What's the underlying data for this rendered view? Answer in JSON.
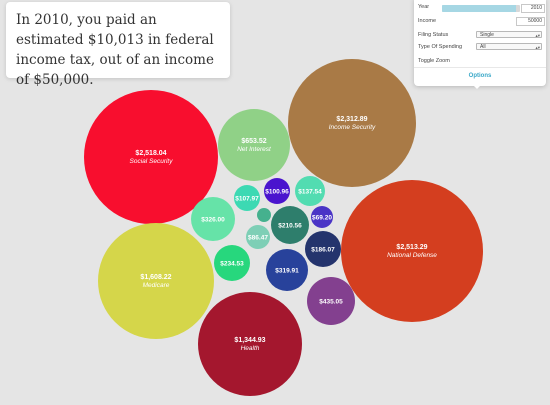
{
  "headline": "In 2010, you paid an estimated $10,013 in federal income tax, out of an income of $50,000.",
  "options": {
    "year_label": "Year",
    "year_value": "2010",
    "year_fraction": 0.95,
    "income_label": "Income",
    "income_value": "50000",
    "filing_label": "Filing Status",
    "filing_value": "Single",
    "spending_label": "Type Of Spending",
    "spending_value": "All",
    "toggle_zoom_label": "Toggle Zoom",
    "tab_label": "Options"
  },
  "colors": {
    "background": "#e5e5e5",
    "accent": "#3aa8c8"
  },
  "chart_data": {
    "type": "bubble",
    "bubbles": [
      {
        "amount": "$2,518.04",
        "name": "Social Security",
        "color": "#f80e2e"
      },
      {
        "amount": "$2,312.89",
        "name": "Income Security",
        "color": "#a97a46"
      },
      {
        "amount": "$2,513.29",
        "name": "National Defense",
        "color": "#d43e1f"
      },
      {
        "amount": "$1,608.22",
        "name": "Medicare",
        "color": "#d5d64a"
      },
      {
        "amount": "$1,344.93",
        "name": "Health",
        "color": "#a4172e"
      },
      {
        "amount": "$653.52",
        "name": "Net Interest",
        "color": "#90d187"
      },
      {
        "amount": "$435.05",
        "name": "",
        "color": "#83408f"
      },
      {
        "amount": "$326.00",
        "name": "",
        "color": "#66e3a8"
      },
      {
        "amount": "$319.91",
        "name": "",
        "color": "#28429b"
      },
      {
        "amount": "$234.53",
        "name": "",
        "color": "#27d77d"
      },
      {
        "amount": "$210.56",
        "name": "",
        "color": "#2e7e6c"
      },
      {
        "amount": "$186.07",
        "name": "",
        "color": "#24346d"
      },
      {
        "amount": "$137.54",
        "name": "",
        "color": "#52dcb1"
      },
      {
        "amount": "$107.97",
        "name": "",
        "color": "#3cd9b3"
      },
      {
        "amount": "$100.96",
        "name": "",
        "color": "#4a14ce"
      },
      {
        "amount": "$86.47",
        "name": "",
        "color": "#7ecfb6"
      },
      {
        "amount": "$69.20",
        "name": "",
        "color": "#4a34c6"
      },
      {
        "amount": "",
        "name": "",
        "color": "#45b18e"
      }
    ]
  }
}
